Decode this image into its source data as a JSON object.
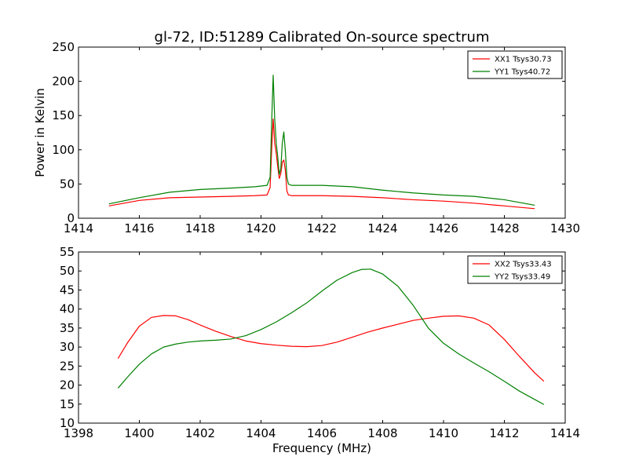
{
  "chart_data": [
    {
      "type": "line",
      "title": "gl-72, ID:51289 Calibrated On-source spectrum",
      "xlabel": "",
      "ylabel": "Power in Kelvin",
      "xlim": [
        1414,
        1430
      ],
      "ylim": [
        0,
        250
      ],
      "xticks": [
        1414,
        1416,
        1418,
        1420,
        1422,
        1424,
        1426,
        1428,
        1430
      ],
      "yticks": [
        0,
        50,
        100,
        150,
        200,
        250
      ],
      "grid": false,
      "legend_position": "top-right",
      "series": [
        {
          "name": "XX1 Tsys30.73",
          "color": "#ff0000",
          "x": [
            1415,
            1416,
            1417,
            1418,
            1419,
            1419.8,
            1420.2,
            1420.3,
            1420.35,
            1420.4,
            1420.45,
            1420.5,
            1420.55,
            1420.6,
            1420.65,
            1420.7,
            1420.75,
            1420.8,
            1420.85,
            1420.9,
            1421.0,
            1421.5,
            1422,
            1423,
            1424,
            1425,
            1426,
            1427,
            1428,
            1429
          ],
          "y": [
            18,
            26,
            30,
            31,
            32,
            33,
            34,
            45,
            100,
            145,
            110,
            95,
            75,
            58,
            65,
            82,
            85,
            70,
            40,
            34,
            33,
            33,
            33,
            32,
            30,
            27,
            25,
            22,
            18,
            14
          ]
        },
        {
          "name": "YY1 Tsys40.72",
          "color": "#008000",
          "x": [
            1415,
            1416,
            1417,
            1418,
            1419,
            1419.8,
            1420.2,
            1420.3,
            1420.35,
            1420.4,
            1420.45,
            1420.5,
            1420.55,
            1420.6,
            1420.65,
            1420.7,
            1420.75,
            1420.8,
            1420.85,
            1420.9,
            1421.0,
            1421.5,
            1422,
            1423,
            1424,
            1425,
            1426,
            1427,
            1428,
            1429
          ],
          "y": [
            21,
            30,
            38,
            42,
            44,
            46,
            48,
            60,
            140,
            209,
            145,
            110,
            90,
            64,
            72,
            110,
            126,
            98,
            60,
            50,
            48,
            48,
            48,
            46,
            41,
            37,
            34,
            32,
            27,
            19
          ]
        }
      ]
    },
    {
      "type": "line",
      "title": "",
      "xlabel": "Frequency (MHz)",
      "ylabel": "",
      "xlim": [
        1398,
        1414
      ],
      "ylim": [
        10,
        55
      ],
      "xticks": [
        1398,
        1400,
        1402,
        1404,
        1406,
        1408,
        1410,
        1412,
        1414
      ],
      "yticks": [
        10,
        15,
        20,
        25,
        30,
        35,
        40,
        45,
        50,
        55
      ],
      "grid": false,
      "legend_position": "top-right",
      "series": [
        {
          "name": "XX2 Tsys33.43",
          "color": "#ff0000",
          "x": [
            1399.3,
            1399.6,
            1400,
            1400.4,
            1400.8,
            1401.2,
            1401.6,
            1402,
            1402.5,
            1403,
            1403.5,
            1404,
            1404.5,
            1405,
            1405.5,
            1406,
            1406.5,
            1407,
            1407.5,
            1408,
            1408.5,
            1409,
            1409.5,
            1410,
            1410.5,
            1411,
            1411.5,
            1412,
            1412.5,
            1413,
            1413.3
          ],
          "y": [
            27,
            31,
            35.5,
            37.8,
            38.3,
            38.2,
            37.2,
            35.8,
            34.2,
            32.8,
            31.6,
            30.9,
            30.5,
            30.2,
            30.1,
            30.4,
            31.3,
            32.6,
            33.9,
            35.0,
            36.0,
            37.0,
            37.6,
            38.1,
            38.2,
            37.6,
            35.8,
            32.0,
            27.5,
            23.2,
            21
          ]
        },
        {
          "name": "YY2 Tsys33.49",
          "color": "#008000",
          "x": [
            1399.3,
            1399.6,
            1400,
            1400.4,
            1400.8,
            1401.2,
            1401.6,
            1402,
            1402.5,
            1403,
            1403.5,
            1404,
            1404.5,
            1405,
            1405.5,
            1406,
            1406.5,
            1407,
            1407.3,
            1407.6,
            1408,
            1408.5,
            1409,
            1409.5,
            1410,
            1410.5,
            1411,
            1411.5,
            1412,
            1412.5,
            1413,
            1413.3
          ],
          "y": [
            19.2,
            22,
            25.5,
            28.2,
            30,
            30.8,
            31.3,
            31.6,
            31.8,
            32.1,
            33,
            34.6,
            36.6,
            39,
            41.6,
            44.7,
            47.6,
            49.6,
            50.4,
            50.5,
            49.2,
            46.0,
            41.0,
            35.0,
            31.0,
            28.2,
            25.8,
            23.5,
            21.0,
            18.4,
            16.2,
            14.9
          ]
        }
      ]
    }
  ]
}
